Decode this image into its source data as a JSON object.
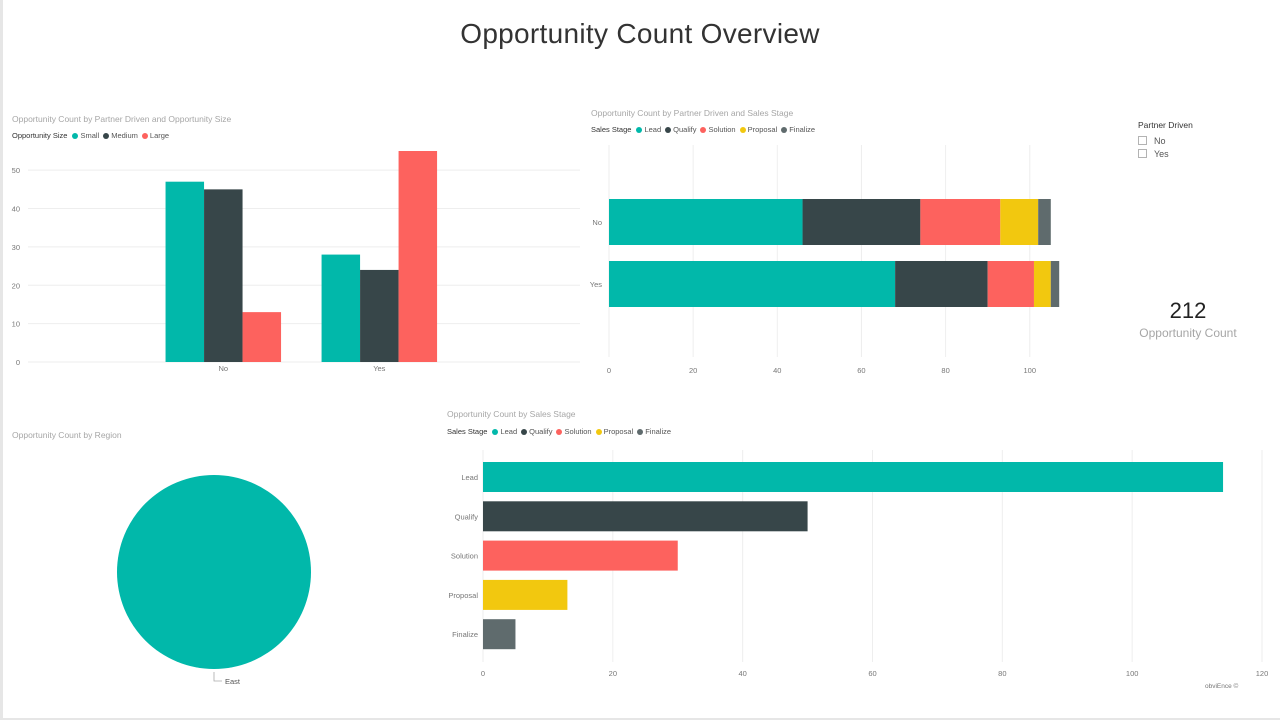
{
  "report": {
    "title": "Opportunity Count Overview",
    "footer": "obviEnce ©"
  },
  "colors": {
    "teal": "#01B8AA",
    "dark": "#374649",
    "red": "#FD625E",
    "yellow": "#F2C80F",
    "gray": "#5F6B6D",
    "grid": "#eeeeee",
    "axis_text": "#777777"
  },
  "slicer": {
    "title": "Partner Driven",
    "options": [
      "No",
      "Yes"
    ]
  },
  "card": {
    "value": "212",
    "label": "Opportunity Count"
  },
  "chart_data": [
    {
      "id": "size",
      "type": "bar",
      "title": "Opportunity Count by Partner Driven and Opportunity Size",
      "legend_title": "Opportunity Size",
      "categories": [
        "No",
        "Yes"
      ],
      "series": [
        {
          "name": "Small",
          "color": "#01B8AA",
          "values": [
            47,
            28
          ]
        },
        {
          "name": "Medium",
          "color": "#374649",
          "values": [
            45,
            24
          ]
        },
        {
          "name": "Large",
          "color": "#FD625E",
          "values": [
            13,
            55
          ]
        }
      ],
      "ylim": [
        0,
        55
      ],
      "yticks": [
        0,
        10,
        20,
        30,
        40,
        50
      ]
    },
    {
      "id": "stage_partner",
      "type": "bar",
      "orientation": "horizontal-stacked",
      "title": "Opportunity Count by Partner Driven and Sales Stage",
      "legend_title": "Sales Stage",
      "categories": [
        "No",
        "Yes"
      ],
      "series": [
        {
          "name": "Lead",
          "color": "#01B8AA",
          "values": [
            46,
            68
          ]
        },
        {
          "name": "Qualify",
          "color": "#374649",
          "values": [
            28,
            22
          ]
        },
        {
          "name": "Solution",
          "color": "#FD625E",
          "values": [
            19,
            11
          ]
        },
        {
          "name": "Proposal",
          "color": "#F2C80F",
          "values": [
            9,
            4
          ]
        },
        {
          "name": "Finalize",
          "color": "#5F6B6D",
          "values": [
            3,
            2
          ]
        }
      ],
      "xlim": [
        0,
        106
      ],
      "xticks": [
        0,
        20,
        40,
        60,
        80,
        100
      ]
    },
    {
      "id": "region",
      "type": "pie",
      "title": "Opportunity Count by Region",
      "slices": [
        {
          "label": "East",
          "value": 212,
          "color": "#01B8AA"
        }
      ]
    },
    {
      "id": "stage",
      "type": "bar",
      "orientation": "horizontal",
      "title": "Opportunity Count by Sales Stage",
      "legend_title": "Sales Stage",
      "categories": [
        "Lead",
        "Qualify",
        "Solution",
        "Proposal",
        "Finalize"
      ],
      "values": [
        114,
        50,
        30,
        13,
        5
      ],
      "colors": [
        "#01B8AA",
        "#374649",
        "#FD625E",
        "#F2C80F",
        "#5F6B6D"
      ],
      "legend": [
        {
          "name": "Lead",
          "color": "#01B8AA"
        },
        {
          "name": "Qualify",
          "color": "#374649"
        },
        {
          "name": "Solution",
          "color": "#FD625E"
        },
        {
          "name": "Proposal",
          "color": "#F2C80F"
        },
        {
          "name": "Finalize",
          "color": "#5F6B6D"
        }
      ],
      "xlim": [
        0,
        120
      ],
      "xticks": [
        0,
        20,
        40,
        60,
        80,
        100,
        120
      ]
    }
  ]
}
